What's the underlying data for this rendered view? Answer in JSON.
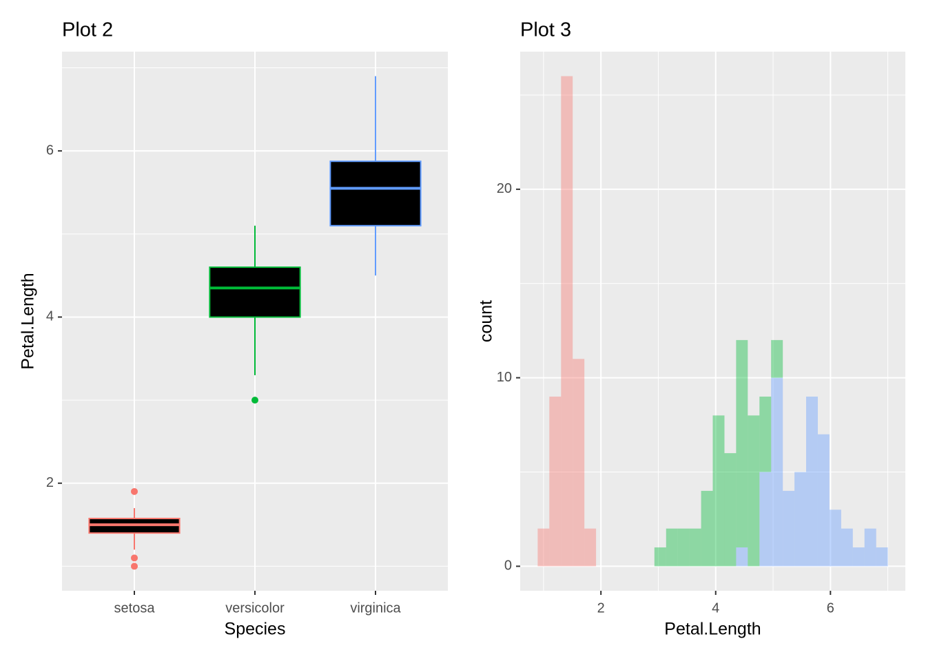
{
  "chart_data": [
    {
      "type": "box",
      "title": "Plot 2",
      "x_label": "Species",
      "y_label": "Petal.Length",
      "categories": [
        "setosa",
        "versicolor",
        "virginica"
      ],
      "colors": [
        "#F8766D",
        "#00BA38",
        "#619CFF"
      ],
      "box_fill": "#000000",
      "boxes": [
        {
          "whisker_low": 1.2,
          "q1": 1.4,
          "median": 1.5,
          "q3": 1.575,
          "whisker_high": 1.7,
          "outliers": [
            1.0,
            1.1,
            1.9
          ]
        },
        {
          "whisker_low": 3.3,
          "q1": 4.0,
          "median": 4.35,
          "q3": 4.6,
          "whisker_high": 5.1,
          "outliers": [
            3.0
          ]
        },
        {
          "whisker_low": 4.5,
          "q1": 5.1,
          "median": 5.55,
          "q3": 5.875,
          "whisker_high": 6.9,
          "outliers": []
        }
      ],
      "ylim": [
        0.705,
        7.195
      ],
      "yticks": [
        2,
        4,
        6
      ],
      "yminor": [
        1,
        3,
        5,
        7
      ],
      "grid": true
    },
    {
      "type": "histogram",
      "title": "Plot 3",
      "x_label": "Petal.Length",
      "y_label": "count",
      "stacked": true,
      "opacity": 0.4,
      "bins": [
        0.898,
        1.101,
        1.305,
        1.508,
        1.712,
        1.915,
        2.119,
        2.322,
        2.525,
        2.729,
        2.932,
        3.136,
        3.339,
        3.542,
        3.746,
        3.949,
        4.153,
        4.356,
        4.559,
        4.763,
        4.966,
        5.17,
        5.373,
        5.576,
        5.78,
        5.983,
        6.187,
        6.39,
        6.593,
        6.797,
        7.0
      ],
      "series": [
        {
          "name": "setosa",
          "color": "#F8766D",
          "values": [
            2,
            9,
            26,
            11,
            2,
            0,
            0,
            0,
            0,
            0,
            0,
            0,
            0,
            0,
            0,
            0,
            0,
            0,
            0,
            0,
            0,
            0,
            0,
            0,
            0,
            0,
            0,
            0,
            0,
            0
          ]
        },
        {
          "name": "versicolor",
          "color": "#00BA38",
          "values": [
            0,
            0,
            0,
            0,
            0,
            0,
            0,
            0,
            0,
            0,
            1,
            2,
            2,
            2,
            4,
            8,
            6,
            11,
            8,
            4,
            2,
            0,
            0,
            0,
            0,
            0,
            0,
            0,
            0,
            0
          ]
        },
        {
          "name": "virginica",
          "color": "#619CFF",
          "values": [
            0,
            0,
            0,
            0,
            0,
            0,
            0,
            0,
            0,
            0,
            0,
            0,
            0,
            0,
            0,
            0,
            0,
            1,
            0,
            5,
            10,
            4,
            5,
            9,
            7,
            3,
            2,
            1,
            2,
            1
          ]
        }
      ],
      "xlim": [
        0.593,
        7.305
      ],
      "xticks": [
        2,
        4,
        6
      ],
      "xminor": [
        1,
        3,
        5,
        7
      ],
      "ylim": [
        -1.3,
        27.3
      ],
      "yticks": [
        0,
        10,
        20
      ],
      "yminor": [
        5,
        15,
        25
      ],
      "grid": true
    }
  ]
}
